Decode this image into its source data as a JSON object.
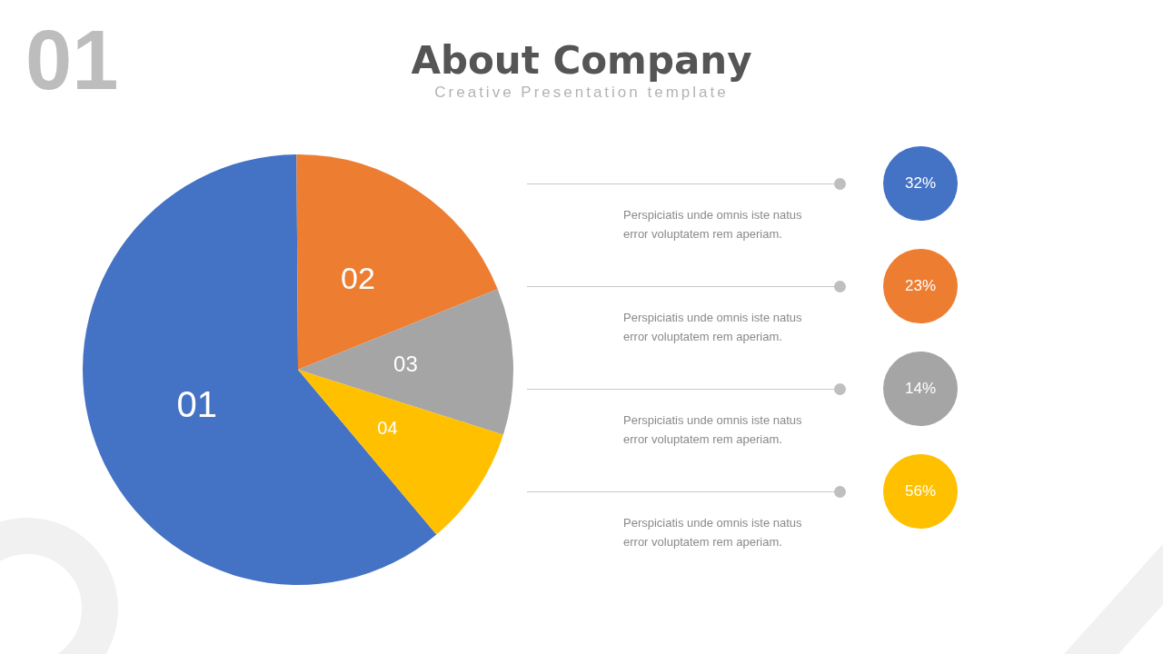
{
  "chart_data": {
    "type": "pie",
    "title": "About Company",
    "subtitle": "Creative Presentation template",
    "categories": [
      "01",
      "02",
      "03",
      "04"
    ],
    "values": [
      61,
      19,
      11,
      9
    ],
    "colors": [
      "#4472c4",
      "#ed7d31",
      "#a5a5a5",
      "#ffc000"
    ],
    "legend": false,
    "annotations": [
      "01",
      "Perspiciatis unde omnis iste natus error voluptatem rem aperiam.",
      "32%",
      "Perspiciatis unde omnis iste natus error voluptatem rem aperiam.",
      "23%",
      "Perspiciatis unde omnis iste natus error voluptatem rem aperiam.",
      "14%",
      "Perspiciatis unde omnis iste natus error voluptatem rem aperiam.",
      "56%"
    ]
  }
}
